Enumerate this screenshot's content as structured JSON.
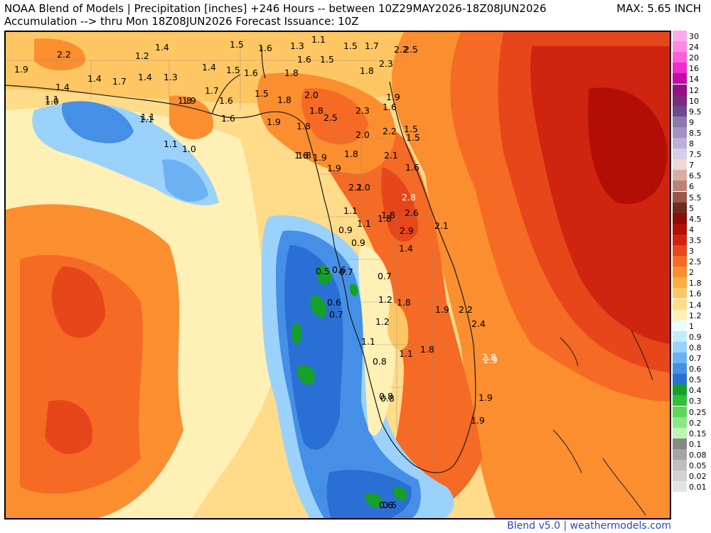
{
  "header": {
    "title_line1": "NOAA Blend of Models | Precipitation [inches] +246 Hours -- between 10Z29MAY2026-18Z08JUN2026",
    "title_line2": "Accumulation --> thru Mon 18Z08JUN2026   Forecast Issuance: 10Z",
    "max_label": "MAX: 5.65 INCH"
  },
  "credit": "Blend v5.0 | weathermodels.com",
  "legend": [
    {
      "label": "30",
      "color": "#ffa8ee"
    },
    {
      "label": "24",
      "color": "#ff8ae4"
    },
    {
      "label": "20",
      "color": "#ff5fd6"
    },
    {
      "label": "16",
      "color": "#f02ccf"
    },
    {
      "label": "14",
      "color": "#c40ca7"
    },
    {
      "label": "12",
      "color": "#960f84"
    },
    {
      "label": "10",
      "color": "#7b2a7e"
    },
    {
      "label": "9.5",
      "color": "#6c4a90"
    },
    {
      "label": "9",
      "color": "#8c77b0"
    },
    {
      "label": "8.5",
      "color": "#a392c4"
    },
    {
      "label": "8",
      "color": "#bdb0d6"
    },
    {
      "label": "7.5",
      "color": "#d7cde6"
    },
    {
      "label": "7",
      "color": "#efd9d4"
    },
    {
      "label": "6.5",
      "color": "#d8ada4"
    },
    {
      "label": "6",
      "color": "#bb8378"
    },
    {
      "label": "5.5",
      "color": "#98574b"
    },
    {
      "label": "5",
      "color": "#6e2b20"
    },
    {
      "label": "4.5",
      "color": "#8e0b08"
    },
    {
      "label": "4",
      "color": "#b30e06"
    },
    {
      "label": "3.5",
      "color": "#cf2410"
    },
    {
      "label": "3",
      "color": "#e7461a"
    },
    {
      "label": "2.5",
      "color": "#f56a24"
    },
    {
      "label": "2",
      "color": "#fb8e2f"
    },
    {
      "label": "1.8",
      "color": "#ffad43"
    },
    {
      "label": "1.6",
      "color": "#ffc763"
    },
    {
      "label": "1.4",
      "color": "#ffdb8a"
    },
    {
      "label": "1.2",
      "color": "#fff0b6"
    },
    {
      "label": "1",
      "color": "#ecfbff"
    },
    {
      "label": "0.9",
      "color": "#c4eaff"
    },
    {
      "label": "0.8",
      "color": "#9bd2fb"
    },
    {
      "label": "0.7",
      "color": "#6cb2f3"
    },
    {
      "label": "0.6",
      "color": "#4590e6"
    },
    {
      "label": "0.5",
      "color": "#2a6fd4"
    },
    {
      "label": "0.4",
      "color": "#15a02a"
    },
    {
      "label": "0.3",
      "color": "#2fc13a"
    },
    {
      "label": "0.25",
      "color": "#5ed65a"
    },
    {
      "label": "0.2",
      "color": "#8de788"
    },
    {
      "label": "0.15",
      "color": "#bdf4b6"
    },
    {
      "label": "0.1",
      "color": "#888888"
    },
    {
      "label": "0.08",
      "color": "#a5a5a5"
    },
    {
      "label": "0.05",
      "color": "#bebebe"
    },
    {
      "label": "0.02",
      "color": "#d2d2d2"
    },
    {
      "label": "0.01",
      "color": "#e4e4e4"
    }
  ],
  "map_values": [
    "2.2",
    "1.2",
    "1.4",
    "1.5",
    "1.6",
    "1.3",
    "1.1",
    "1.5",
    "1.7",
    "2.2",
    "2.5",
    "1.9",
    "1.4",
    "1.4",
    "1.7",
    "1.4",
    "1.3",
    "1.4",
    "1.5",
    "1.6",
    "1.8",
    "1.6",
    "1.5",
    "2.3",
    "1.1",
    "1.0",
    "1.1",
    "1.8",
    "1.9",
    "1.7",
    "1.6",
    "1.5",
    "1.8",
    "2.0",
    "1.8",
    "1.8",
    "1.1",
    "1.6",
    "1.9",
    "1.8",
    "2.5",
    "2.3",
    "1.6",
    "1.9",
    "1.1",
    "1.0",
    "2.0",
    "2.2",
    "1.5",
    "1.5",
    "1.6",
    "1.8",
    "1.9",
    "1.8",
    "2.1",
    "1.6",
    "1.9",
    "2.1",
    "2.0",
    "1.8",
    "2.8",
    "2.6",
    "1.1",
    "1.1",
    "1.8",
    "0.9",
    "0.9",
    "2.9",
    "2.1",
    "1.4",
    "0.5",
    "0.6",
    "0.7",
    "0.7",
    "0.6",
    "1.2",
    "1.8",
    "1.9",
    "2.2",
    "0.7",
    "1.2",
    "2.4",
    "1.1",
    "1.1",
    "1.8",
    "0.8",
    "2.8",
    "2.9",
    "0.8",
    "0.8",
    "1.9",
    "1.9",
    "0.6",
    "0.6"
  ],
  "icons": {
    "map": "precip-map",
    "legend": "color-scale-legend"
  }
}
